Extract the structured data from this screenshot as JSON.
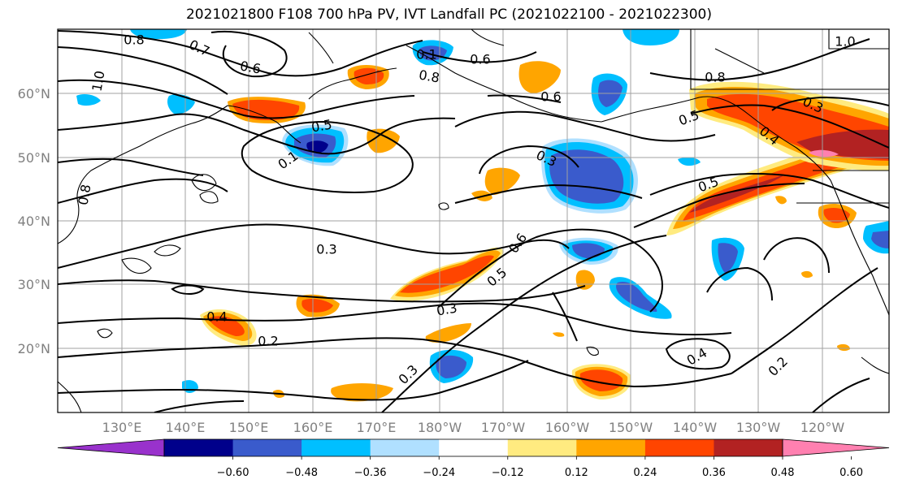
{
  "title": "2021021800 F108 700 hPa PV, IVT Landfall PC (2021022100 - 2021022300)",
  "map": {
    "lon_labels": [
      "130°E",
      "140°E",
      "150°E",
      "160°E",
      "170°E",
      "180°W",
      "170°W",
      "160°W",
      "150°W",
      "140°W",
      "130°W",
      "120°W"
    ],
    "lat_labels": [
      "60°N",
      "50°N",
      "40°N",
      "30°N",
      "20°N"
    ],
    "contour_labels": [
      "0.8",
      "0.7",
      "0.6",
      "1.0",
      "0.6",
      "0.5",
      "0.8",
      "0.1",
      "0.6",
      "0.1",
      "0.8",
      "1.0",
      "0.3",
      "0.5",
      "0.4",
      "0.3",
      "0.5",
      "0.8",
      "0.3",
      "0.6",
      "0.5",
      "0.3",
      "0.4",
      "0.2",
      "0.3",
      "0.4",
      "0.2"
    ]
  },
  "colorbar": {
    "tick_labels": [
      "−0.60",
      "−0.48",
      "−0.36",
      "−0.24",
      "−0.12",
      "0.12",
      "0.24",
      "0.36",
      "0.48",
      "0.60"
    ],
    "colors": [
      "#9932cc",
      "#00008b",
      "#3a5bcc",
      "#00bfff",
      "#b0e0ff",
      "#ffffff",
      "#ffeb80",
      "#ffa500",
      "#ff4500",
      "#b22222",
      "#ff80b0"
    ]
  }
}
